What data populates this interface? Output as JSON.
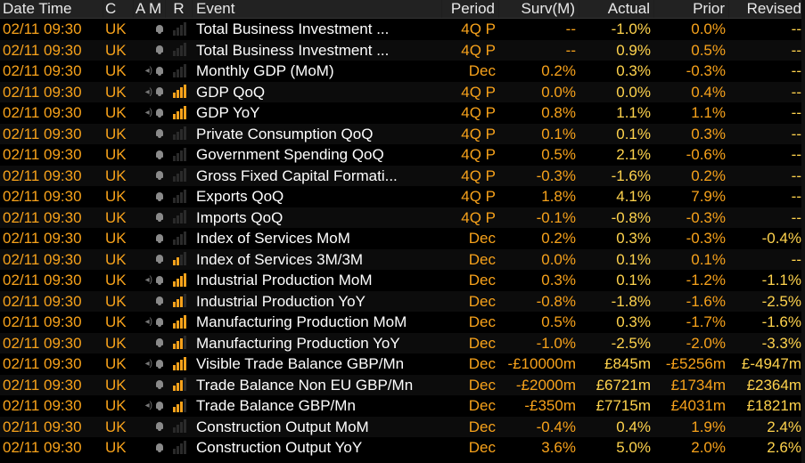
{
  "headers": {
    "datetime": "Date Time",
    "c": "C",
    "am": "A M",
    "r": "R",
    "event": "Event",
    "period": "Period",
    "surv": "Surv(M)",
    "actual": "Actual",
    "prior": "Prior",
    "revised": "Revised"
  },
  "colors": {
    "orange": "#f7a21b",
    "yellow": "#ffd34d",
    "white": "#ffffff",
    "gray": "#8a8a8a"
  },
  "rows": [
    {
      "date": "02/11 09:30",
      "country": "UK",
      "speaker": false,
      "relevance": 0,
      "event": "Total Business Investment ...",
      "period": "4Q P",
      "surv": "--",
      "actual": "-1.0%",
      "prior": "0.0%",
      "revised": "--"
    },
    {
      "date": "02/11 09:30",
      "country": "UK",
      "speaker": false,
      "relevance": 0,
      "event": "Total Business Investment ...",
      "period": "4Q P",
      "surv": "--",
      "actual": "0.9%",
      "prior": "0.5%",
      "revised": "--"
    },
    {
      "date": "02/11 09:30",
      "country": "UK",
      "speaker": true,
      "relevance": 0,
      "event": "Monthly GDP (MoM)",
      "period": "Dec",
      "surv": "0.2%",
      "actual": "0.3%",
      "prior": "-0.3%",
      "revised": "--"
    },
    {
      "date": "02/11 09:30",
      "country": "UK",
      "speaker": true,
      "relevance": 4,
      "event": "GDP QoQ",
      "period": "4Q P",
      "surv": "0.0%",
      "actual": "0.0%",
      "prior": "0.4%",
      "revised": "--"
    },
    {
      "date": "02/11 09:30",
      "country": "UK",
      "speaker": true,
      "relevance": 4,
      "event": "GDP YoY",
      "period": "4Q P",
      "surv": "0.8%",
      "actual": "1.1%",
      "prior": "1.1%",
      "revised": "--"
    },
    {
      "date": "02/11 09:30",
      "country": "UK",
      "speaker": false,
      "relevance": 0,
      "event": "Private Consumption QoQ",
      "period": "4Q P",
      "surv": "0.1%",
      "actual": "0.1%",
      "prior": "0.3%",
      "revised": "--"
    },
    {
      "date": "02/11 09:30",
      "country": "UK",
      "speaker": false,
      "relevance": 0,
      "event": "Government Spending QoQ",
      "period": "4Q P",
      "surv": "0.5%",
      "actual": "2.1%",
      "prior": "-0.6%",
      "revised": "--"
    },
    {
      "date": "02/11 09:30",
      "country": "UK",
      "speaker": false,
      "relevance": 0,
      "event": "Gross Fixed Capital Formati...",
      "period": "4Q P",
      "surv": "-0.3%",
      "actual": "-1.6%",
      "prior": "0.2%",
      "revised": "--"
    },
    {
      "date": "02/11 09:30",
      "country": "UK",
      "speaker": false,
      "relevance": 0,
      "event": "Exports QoQ",
      "period": "4Q P",
      "surv": "1.8%",
      "actual": "4.1%",
      "prior": "7.9%",
      "revised": "--"
    },
    {
      "date": "02/11 09:30",
      "country": "UK",
      "speaker": false,
      "relevance": 0,
      "event": "Imports QoQ",
      "period": "4Q P",
      "surv": "-0.1%",
      "actual": "-0.8%",
      "prior": "-0.3%",
      "revised": "--"
    },
    {
      "date": "02/11 09:30",
      "country": "UK",
      "speaker": false,
      "relevance": 0,
      "event": "Index of Services MoM",
      "period": "Dec",
      "surv": "0.2%",
      "actual": "0.3%",
      "prior": "-0.3%",
      "revised": "-0.4%"
    },
    {
      "date": "02/11 09:30",
      "country": "UK",
      "speaker": false,
      "relevance": 2,
      "event": "Index of Services 3M/3M",
      "period": "Dec",
      "surv": "0.0%",
      "actual": "0.1%",
      "prior": "0.1%",
      "revised": "--"
    },
    {
      "date": "02/11 09:30",
      "country": "UK",
      "speaker": true,
      "relevance": 4,
      "event": "Industrial Production MoM",
      "period": "Dec",
      "surv": "0.3%",
      "actual": "0.1%",
      "prior": "-1.2%",
      "revised": "-1.1%"
    },
    {
      "date": "02/11 09:30",
      "country": "UK",
      "speaker": false,
      "relevance": 3,
      "event": "Industrial Production YoY",
      "period": "Dec",
      "surv": "-0.8%",
      "actual": "-1.8%",
      "prior": "-1.6%",
      "revised": "-2.5%"
    },
    {
      "date": "02/11 09:30",
      "country": "UK",
      "speaker": true,
      "relevance": 4,
      "event": "Manufacturing Production MoM",
      "period": "Dec",
      "surv": "0.5%",
      "actual": "0.3%",
      "prior": "-1.7%",
      "revised": "-1.6%"
    },
    {
      "date": "02/11 09:30",
      "country": "UK",
      "speaker": false,
      "relevance": 3,
      "event": "Manufacturing Production YoY",
      "period": "Dec",
      "surv": "-1.0%",
      "actual": "-2.5%",
      "prior": "-2.0%",
      "revised": "-3.3%"
    },
    {
      "date": "02/11 09:30",
      "country": "UK",
      "speaker": true,
      "relevance": 4,
      "event": "Visible Trade Balance GBP/Mn",
      "period": "Dec",
      "surv": "-£10000m",
      "actual": "£845m",
      "prior": "-£5256m",
      "revised": "£-4947m"
    },
    {
      "date": "02/11 09:30",
      "country": "UK",
      "speaker": false,
      "relevance": 3,
      "event": "Trade Balance Non EU GBP/Mn",
      "period": "Dec",
      "surv": "-£2000m",
      "actual": "£6721m",
      "prior": "£1734m",
      "revised": "£2364m"
    },
    {
      "date": "02/11 09:30",
      "country": "UK",
      "speaker": true,
      "relevance": 3,
      "event": "Trade Balance GBP/Mn",
      "period": "Dec",
      "surv": "-£350m",
      "actual": "£7715m",
      "prior": "£4031m",
      "revised": "£1821m"
    },
    {
      "date": "02/11 09:30",
      "country": "UK",
      "speaker": false,
      "relevance": 0,
      "event": "Construction Output MoM",
      "period": "Dec",
      "surv": "-0.4%",
      "actual": "0.4%",
      "prior": "1.9%",
      "revised": "2.4%"
    },
    {
      "date": "02/11 09:30",
      "country": "UK",
      "speaker": false,
      "relevance": 0,
      "event": "Construction Output YoY",
      "period": "Dec",
      "surv": "3.6%",
      "actual": "5.0%",
      "prior": "2.0%",
      "revised": "2.6%"
    }
  ]
}
